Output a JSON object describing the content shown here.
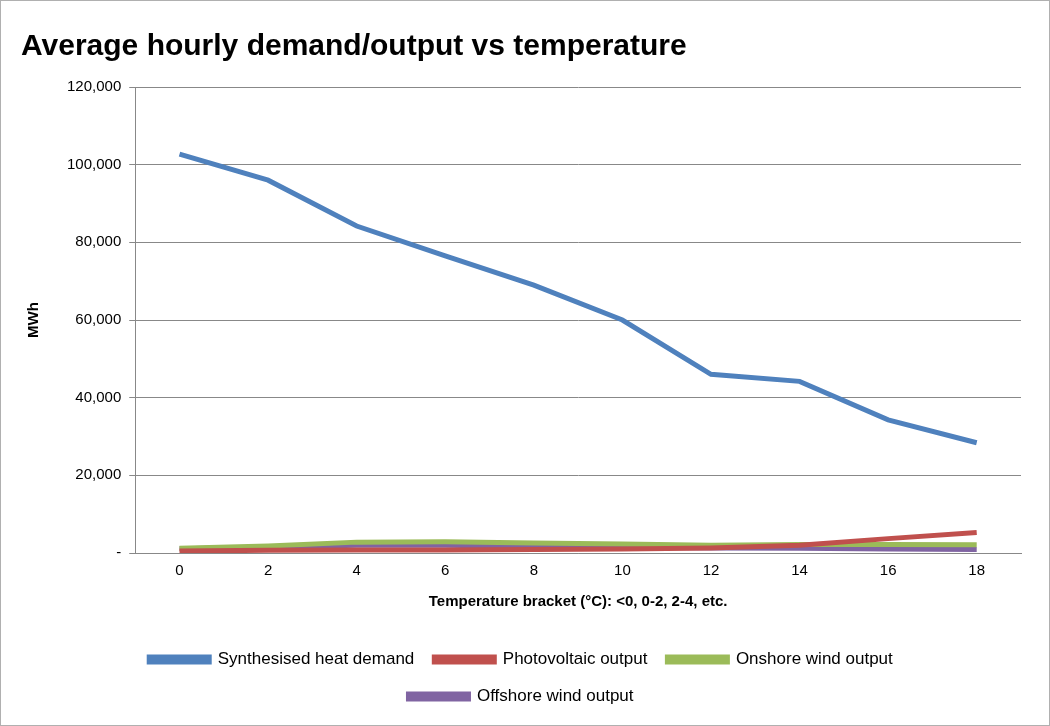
{
  "chart_data": {
    "type": "line",
    "title": "Average hourly demand/output vs temperature",
    "xlabel": "Temperature bracket (°C): <0, 0-2, 2-4, etc.",
    "ylabel": "MWh",
    "categories": [
      "0",
      "2",
      "4",
      "6",
      "8",
      "10",
      "12",
      "14",
      "16",
      "18"
    ],
    "series": [
      {
        "name": "Synthesised heat demand",
        "color": "#4f81bd",
        "values": [
          102700,
          96000,
          84200,
          76500,
          69000,
          60000,
          46000,
          44200,
          34300,
          28400
        ]
      },
      {
        "name": "Photovoltaic output",
        "color": "#c0504d",
        "values": [
          500,
          700,
          800,
          800,
          900,
          1000,
          1300,
          2000,
          3700,
          5300
        ]
      },
      {
        "name": "Onshore wind output",
        "color": "#9bbb59",
        "values": [
          1200,
          1800,
          2800,
          2900,
          2600,
          2300,
          2000,
          2200,
          2200,
          2100
        ]
      },
      {
        "name": "Offshore wind output",
        "color": "#8064a2",
        "values": [
          1100,
          1500,
          2000,
          2000,
          1700,
          1500,
          1300,
          1200,
          1000,
          900
        ]
      }
    ],
    "ylim": [
      0,
      120000
    ],
    "yticks": [
      {
        "value": 0,
        "label": "-"
      },
      {
        "value": 20000,
        "label": "20,000"
      },
      {
        "value": 40000,
        "label": "40,000"
      },
      {
        "value": 60000,
        "label": "60,000"
      },
      {
        "value": 80000,
        "label": "80,000"
      },
      {
        "value": 100000,
        "label": "100,000"
      },
      {
        "value": 120000,
        "label": "120,000"
      }
    ],
    "grid": true,
    "legend": "bottom"
  }
}
